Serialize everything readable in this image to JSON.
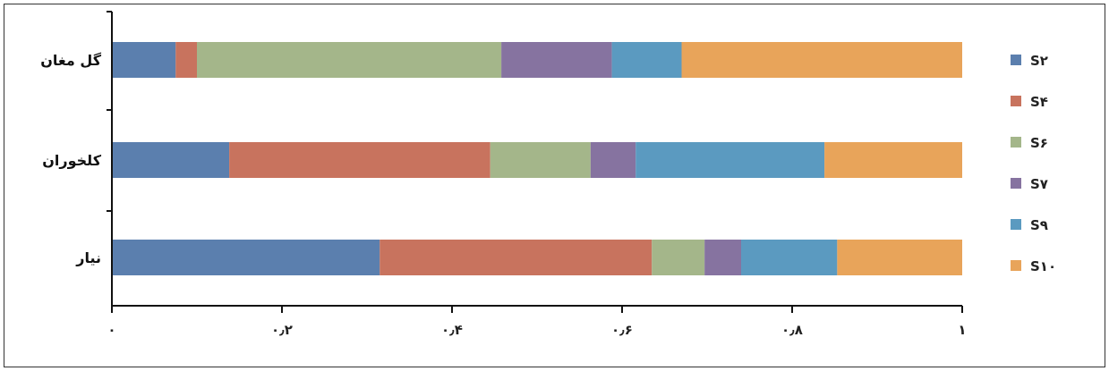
{
  "chart_data": {
    "type": "bar",
    "orientation": "horizontal",
    "stacked": true,
    "normalized": true,
    "categories": [
      "گل مغان",
      "کلخوران",
      "نیار"
    ],
    "series": [
      {
        "name": "S۲",
        "color": "#5b7fae",
        "values": [
          0.075,
          0.138,
          0.315
        ]
      },
      {
        "name": "S۴",
        "color": "#c8735e",
        "values": [
          0.025,
          0.307,
          0.32
        ]
      },
      {
        "name": "S۶",
        "color": "#a4b68a",
        "values": [
          0.358,
          0.118,
          0.062
        ]
      },
      {
        "name": "S۷",
        "color": "#8673a0",
        "values": [
          0.13,
          0.053,
          0.043
        ]
      },
      {
        "name": "S۹",
        "color": "#5b9ac0",
        "values": [
          0.082,
          0.222,
          0.113
        ]
      },
      {
        "name": "S۱۰",
        "color": "#e8a45a",
        "values": [
          0.33,
          0.162,
          0.147
        ]
      }
    ],
    "xlim": [
      0,
      1
    ],
    "xticks": [
      0,
      0.2,
      0.4,
      0.6,
      0.8,
      1
    ],
    "xtick_labels": [
      "۰",
      "۰٫۲",
      "۰٫۴",
      "۰٫۶",
      "۰٫۸",
      "۱"
    ],
    "title": "",
    "xlabel": "",
    "ylabel": "",
    "grid": false,
    "legend_position": "right"
  }
}
